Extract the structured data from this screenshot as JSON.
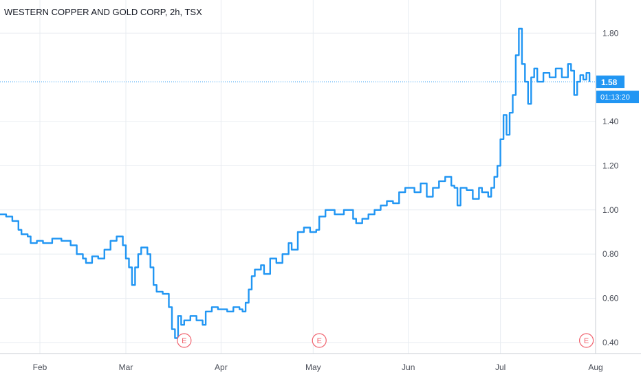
{
  "title": "WESTERN COPPER AND GOLD CORP, 2h, TSX",
  "colors": {
    "line": "#2196f3",
    "grid": "#e8ecf1",
    "axis_text": "#4a4e58",
    "earnings": "#f0616d",
    "price_tag_bg": "#2196f3",
    "price_tag_text": "#ffffff"
  },
  "price_tag": {
    "price": "1.58",
    "countdown": "01:13:20"
  },
  "earnings_markers": [
    {
      "label": "E",
      "date": "Mar 20"
    },
    {
      "label": "E",
      "date": "May 3"
    },
    {
      "label": "E",
      "date": "Jul 29"
    }
  ],
  "chart_data": {
    "type": "line",
    "title": "WESTERN COPPER AND GOLD CORP, 2h, TSX",
    "xlabel": "",
    "ylabel": "",
    "x_ticks": [
      "Feb",
      "Mar",
      "Apr",
      "May",
      "Jun",
      "Jul",
      "Aug"
    ],
    "y_ticks": [
      "0.40",
      "0.60",
      "0.80",
      "1.00",
      "1.20",
      "1.40",
      "1.80"
    ],
    "ylim": [
      0.35,
      1.95
    ],
    "xlim": [
      "Jan 19",
      "Aug 1"
    ],
    "grid": true,
    "last_price": 1.58,
    "series": [
      {
        "values": [
          [
            "Jan 19",
            0.98
          ],
          [
            "Jan 21",
            0.97
          ],
          [
            "Jan 23",
            0.95
          ],
          [
            "Jan 25",
            0.91
          ],
          [
            "Jan 26",
            0.89
          ],
          [
            "Jan 28",
            0.88
          ],
          [
            "Jan 29",
            0.85
          ],
          [
            "Jan 31",
            0.86
          ],
          [
            "Feb 2",
            0.85
          ],
          [
            "Feb 5",
            0.87
          ],
          [
            "Feb 8",
            0.86
          ],
          [
            "Feb 11",
            0.84
          ],
          [
            "Feb 13",
            0.8
          ],
          [
            "Feb 15",
            0.78
          ],
          [
            "Feb 16",
            0.76
          ],
          [
            "Feb 18",
            0.79
          ],
          [
            "Feb 20",
            0.78
          ],
          [
            "Feb 22",
            0.82
          ],
          [
            "Feb 24",
            0.86
          ],
          [
            "Feb 26",
            0.88
          ],
          [
            "Feb 28",
            0.84
          ],
          [
            "Mar 1",
            0.78
          ],
          [
            "Mar 2",
            0.74
          ],
          [
            "Mar 3",
            0.66
          ],
          [
            "Mar 4",
            0.74
          ],
          [
            "Mar 5",
            0.8
          ],
          [
            "Mar 6",
            0.83
          ],
          [
            "Mar 8",
            0.8
          ],
          [
            "Mar 9",
            0.74
          ],
          [
            "Mar 10",
            0.66
          ],
          [
            "Mar 11",
            0.63
          ],
          [
            "Mar 13",
            0.62
          ],
          [
            "Mar 15",
            0.56
          ],
          [
            "Mar 16",
            0.46
          ],
          [
            "Mar 17",
            0.42
          ],
          [
            "Mar 18",
            0.52
          ],
          [
            "Mar 19",
            0.48
          ],
          [
            "Mar 20",
            0.5
          ],
          [
            "Mar 22",
            0.52
          ],
          [
            "Mar 24",
            0.5
          ],
          [
            "Mar 26",
            0.48
          ],
          [
            "Mar 27",
            0.54
          ],
          [
            "Mar 29",
            0.56
          ],
          [
            "Mar 31",
            0.55
          ],
          [
            "Apr 3",
            0.54
          ],
          [
            "Apr 5",
            0.56
          ],
          [
            "Apr 7",
            0.55
          ],
          [
            "Apr 8",
            0.54
          ],
          [
            "Apr 9",
            0.58
          ],
          [
            "Apr 10",
            0.64
          ],
          [
            "Apr 11",
            0.7
          ],
          [
            "Apr 12",
            0.73
          ],
          [
            "Apr 14",
            0.75
          ],
          [
            "Apr 15",
            0.71
          ],
          [
            "Apr 17",
            0.78
          ],
          [
            "Apr 19",
            0.76
          ],
          [
            "Apr 21",
            0.8
          ],
          [
            "Apr 23",
            0.85
          ],
          [
            "Apr 24",
            0.82
          ],
          [
            "Apr 26",
            0.9
          ],
          [
            "Apr 28",
            0.92
          ],
          [
            "Apr 30",
            0.9
          ],
          [
            "May 2",
            0.91
          ],
          [
            "May 3",
            0.97
          ],
          [
            "May 5",
            1.0
          ],
          [
            "May 8",
            0.98
          ],
          [
            "May 11",
            1.0
          ],
          [
            "May 14",
            0.96
          ],
          [
            "May 15",
            0.94
          ],
          [
            "May 17",
            0.96
          ],
          [
            "May 19",
            0.98
          ],
          [
            "May 21",
            1.0
          ],
          [
            "May 23",
            1.02
          ],
          [
            "May 25",
            1.04
          ],
          [
            "May 27",
            1.03
          ],
          [
            "May 29",
            1.08
          ],
          [
            "May 31",
            1.1
          ],
          [
            "Jun 3",
            1.08
          ],
          [
            "Jun 5",
            1.12
          ],
          [
            "Jun 7",
            1.06
          ],
          [
            "Jun 9",
            1.1
          ],
          [
            "Jun 11",
            1.13
          ],
          [
            "Jun 13",
            1.15
          ],
          [
            "Jun 15",
            1.11
          ],
          [
            "Jun 16",
            1.1
          ],
          [
            "Jun 17",
            1.02
          ],
          [
            "Jun 18",
            1.1
          ],
          [
            "Jun 20",
            1.09
          ],
          [
            "Jun 22",
            1.05
          ],
          [
            "Jun 24",
            1.1
          ],
          [
            "Jun 25",
            1.08
          ],
          [
            "Jun 27",
            1.06
          ],
          [
            "Jun 28",
            1.1
          ],
          [
            "Jun 29",
            1.15
          ],
          [
            "Jun 30",
            1.2
          ],
          [
            "Jul 1",
            1.32
          ],
          [
            "Jul 2",
            1.43
          ],
          [
            "Jul 3",
            1.34
          ],
          [
            "Jul 4",
            1.44
          ],
          [
            "Jul 5",
            1.52
          ],
          [
            "Jul 6",
            1.7
          ],
          [
            "Jul 7",
            1.82
          ],
          [
            "Jul 8",
            1.66
          ],
          [
            "Jul 9",
            1.58
          ],
          [
            "Jul 10",
            1.48
          ],
          [
            "Jul 11",
            1.6
          ],
          [
            "Jul 12",
            1.64
          ],
          [
            "Jul 13",
            1.58
          ],
          [
            "Jul 15",
            1.62
          ],
          [
            "Jul 17",
            1.6
          ],
          [
            "Jul 19",
            1.64
          ],
          [
            "Jul 21",
            1.6
          ],
          [
            "Jul 23",
            1.66
          ],
          [
            "Jul 24",
            1.63
          ],
          [
            "Jul 25",
            1.52
          ],
          [
            "Jul 26",
            1.58
          ],
          [
            "Jul 27",
            1.61
          ],
          [
            "Jul 28",
            1.59
          ],
          [
            "Jul 29",
            1.62
          ],
          [
            "Jul 30",
            1.58
          ]
        ]
      }
    ]
  }
}
